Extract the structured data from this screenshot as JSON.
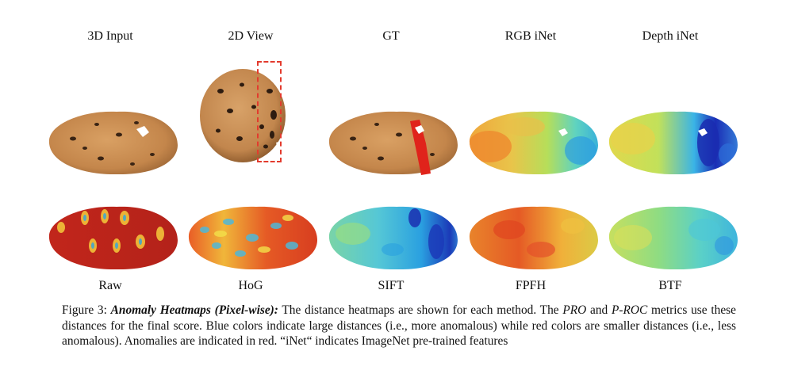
{
  "figure": {
    "top_labels": [
      "3D Input",
      "2D View",
      "GT",
      "RGB iNet",
      "Depth iNet"
    ],
    "bottom_labels": [
      "Raw",
      "HoG",
      "SIFT",
      "FPFH",
      "BTF"
    ],
    "caption": {
      "prefix": "Figure 3: ",
      "title": "Anomaly Heatmaps (Pixel-wise):",
      "part1": " The distance heatmaps are shown for each method. The ",
      "pro": "PRO",
      "and": " and ",
      "proc": "P-ROC",
      "part2": " metrics use these distances for the final score. Blue colors indicate large distances (i.e., more anomalous) while red colors are smaller distances (i.e., less anomalous).  Anomalies are indicated in red.  “iNet“ indicates ImageNet pre-trained features"
    }
  },
  "colors": {
    "cookie": "#c98b4f",
    "cookie_dark": "#8a5a2b",
    "anomaly_red": "#e0231b",
    "bbox_dash": "#e33b2e",
    "heat_red": "#c9201a",
    "heat_yellow": "#e9e04a",
    "heat_green": "#6fcf7a",
    "heat_cyan": "#4fc3d9",
    "heat_blue": "#1b2fb0"
  }
}
